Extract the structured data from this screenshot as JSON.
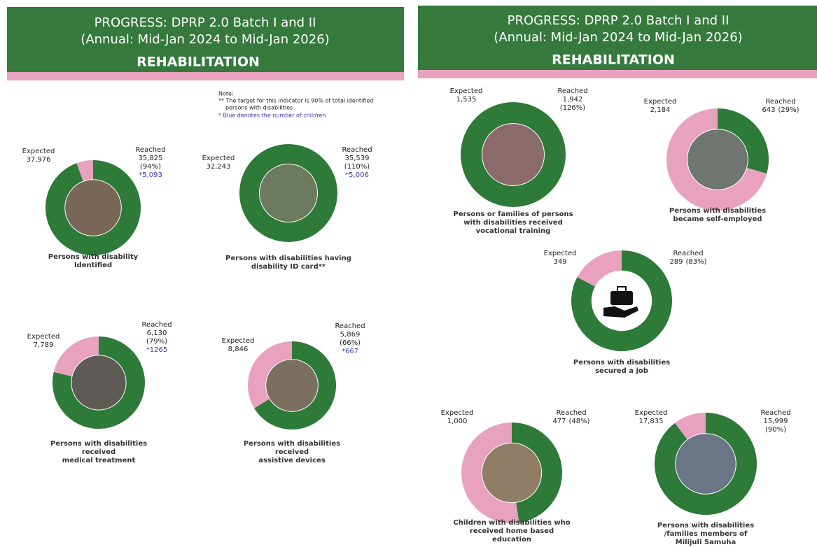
{
  "panels": [
    {
      "title": "PROGRESS: DPRP 2.0 Batch I and II",
      "subtitle": "(Annual: Mid-Jan 2024 to Mid-Jan 2026)",
      "heading": "REHABILITATION"
    },
    {
      "title": "PROGRESS: DPRP 2.0 Batch I and II",
      "subtitle": "(Annual: Mid-Jan 2024 to Mid-Jan 2026)",
      "heading": "REHABILITATION"
    }
  ],
  "note": {
    "title": "Note:",
    "lines": [
      "** The target for this indicator is 90% of total identified",
      "persons with disabilities"
    ],
    "blue_line": "* Blue denotes the number of children"
  },
  "chart_data": [
    {
      "type": "donut",
      "title": [
        "Persons with disability",
        "Identified"
      ],
      "categories": [
        "Expected",
        "Reached"
      ],
      "values": [
        37976,
        35825
      ],
      "value_labels": [
        "37,976",
        "35,825"
      ],
      "percent_label": "(94%)",
      "children_label": "*5,093",
      "colors": [
        "#e8a2c0",
        "#2e7a38"
      ]
    },
    {
      "type": "donut",
      "title": [
        "Persons with disabilities having",
        "disability ID card**"
      ],
      "categories": [
        "Expected",
        "Reached"
      ],
      "values": [
        32243,
        35539
      ],
      "value_labels": [
        "32,243",
        "35,539"
      ],
      "percent_label": "(110%)",
      "children_label": "*5,006",
      "colors": [
        "#e8a2c0",
        "#2e7a38"
      ]
    },
    {
      "type": "donut",
      "title": [
        "Persons with disabilities",
        "received",
        "medical treatment"
      ],
      "categories": [
        "Expected",
        "Reached"
      ],
      "values": [
        7789,
        6130
      ],
      "value_labels": [
        "7,789",
        "6,130"
      ],
      "percent_label": "(79%)",
      "children_label": "*1265",
      "colors": [
        "#e8a2c0",
        "#2e7a38"
      ]
    },
    {
      "type": "donut",
      "title": [
        "Persons with disabilities",
        "received",
        "assistive devices"
      ],
      "categories": [
        "Expected",
        "Reached"
      ],
      "values": [
        8846,
        5869
      ],
      "value_labels": [
        "8,846",
        "5,869"
      ],
      "percent_label": "(66%)",
      "children_label": "*667",
      "colors": [
        "#e8a2c0",
        "#2e7a38"
      ]
    },
    {
      "type": "donut",
      "title": [
        "Persons or families of persons",
        "with disabilities received",
        "vocational training"
      ],
      "categories": [
        "Expected",
        "Reached"
      ],
      "values": [
        1535,
        1942
      ],
      "value_labels": [
        "1,535",
        "1,942"
      ],
      "percent_label": "(126%)",
      "colors": [
        "#e8a2c0",
        "#2e7a38"
      ]
    },
    {
      "type": "donut",
      "title": [
        "Persons with disabilities",
        "became self-employed"
      ],
      "categories": [
        "Expected",
        "Reached"
      ],
      "values": [
        2184,
        643
      ],
      "value_labels": [
        "2,184",
        "643"
      ],
      "percent_label": "(29%)",
      "colors": [
        "#e8a2c0",
        "#2e7a38"
      ]
    },
    {
      "type": "donut",
      "title": [
        "Persons with disabilities",
        "secured a job"
      ],
      "categories": [
        "Expected",
        "Reached"
      ],
      "values": [
        349,
        289
      ],
      "value_labels": [
        "349",
        "289"
      ],
      "percent_label": "(83%)",
      "colors": [
        "#e8a2c0",
        "#2e7a38"
      ]
    },
    {
      "type": "donut",
      "title": [
        "Children with disabilities who",
        "received home based",
        "education"
      ],
      "categories": [
        "Expected",
        "Reached"
      ],
      "values": [
        1000,
        477
      ],
      "value_labels": [
        "1,000",
        "477"
      ],
      "percent_label": "(48%)",
      "colors": [
        "#e8a2c0",
        "#2e7a38"
      ]
    },
    {
      "type": "donut",
      "title": [
        "Persons with disabilities",
        "/families members of",
        "Milijuli Samuha"
      ],
      "categories": [
        "Expected",
        "Reached"
      ],
      "values": [
        17835,
        15999
      ],
      "value_labels": [
        "17,835",
        "15,999"
      ],
      "percent_label": "(90%)",
      "colors": [
        "#e8a2c0",
        "#2e7a38"
      ]
    }
  ]
}
